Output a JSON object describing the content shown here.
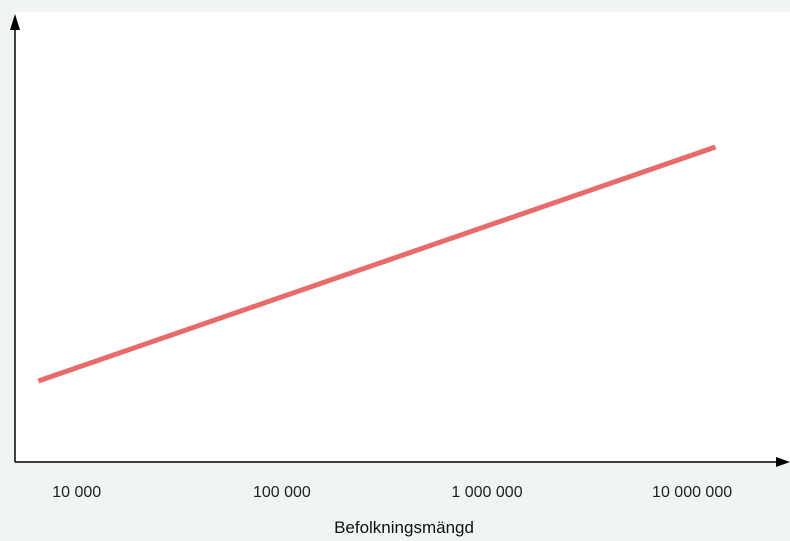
{
  "chart_data": {
    "type": "line",
    "xlabel": "Befolkningsmängd",
    "ylabel": "",
    "xscale": "log",
    "xlim": [
      5000,
      30000000
    ],
    "ylim": [
      0,
      100
    ],
    "x_ticks": [
      10000,
      100000,
      1000000,
      10000000
    ],
    "x_tick_labels": [
      "10 000",
      "100 000",
      "1 000 000",
      "10 000 000"
    ],
    "grid": false,
    "legend": "none",
    "series": [
      {
        "x": [
          6500,
          13000000
        ],
        "y": [
          18,
          70
        ],
        "color": "#e86b6b"
      }
    ]
  }
}
